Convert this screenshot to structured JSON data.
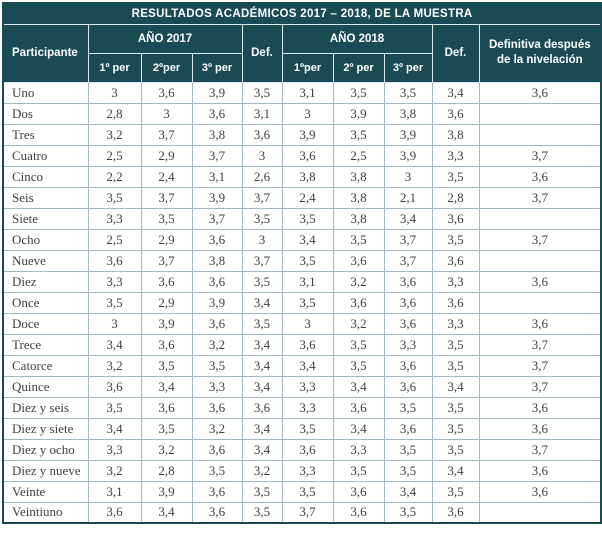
{
  "title": "RESULTADOS ACADÉMICOS 2017 – 2018, DE LA MUESTRA",
  "header": {
    "participante": "Participante",
    "ano_2017": "AÑO 2017",
    "ano_2018": "AÑO 2018",
    "def_2017": "Def.",
    "def_2018": "Def.",
    "definitiva": "Definitiva después de la nivelación",
    "periods_2017": [
      "1º per",
      "2ºper",
      "3º per"
    ],
    "periods_2018": [
      "1ºper",
      "2º per",
      "3º per"
    ]
  },
  "colors": {
    "header_bg": "#1a4a54",
    "header_text": "#ffffff",
    "body_border": "#a2b9c4",
    "header_border": "#dde7eb",
    "body_text": "#3f3f3f"
  },
  "rows": [
    {
      "name": "Uno",
      "values": [
        "3",
        "3,6",
        "3,9",
        "3,5",
        "3,1",
        "3,5",
        "3,5",
        "3,4",
        "3,6"
      ]
    },
    {
      "name": "Dos",
      "values": [
        "2,8",
        "3",
        "3,6",
        "3,1",
        "3",
        "3,9",
        "3,8",
        "3,6",
        ""
      ]
    },
    {
      "name": "Tres",
      "values": [
        "3,2",
        "3,7",
        "3,8",
        "3,6",
        "3,9",
        "3,5",
        "3,9",
        "3,8",
        ""
      ]
    },
    {
      "name": "Cuatro",
      "values": [
        "2,5",
        "2,9",
        "3,7",
        "3",
        "3,6",
        "2,5",
        "3,9",
        "3,3",
        "3,7"
      ]
    },
    {
      "name": "Cinco",
      "values": [
        "2,2",
        "2,4",
        "3,1",
        "2,6",
        "3,8",
        "3,8",
        "3",
        "3,5",
        "3,6"
      ]
    },
    {
      "name": "Seis",
      "values": [
        "3,5",
        "3,7",
        "3,9",
        "3,7",
        "2,4",
        "3,8",
        "2,1",
        "2,8",
        "3,7"
      ]
    },
    {
      "name": "Siete",
      "values": [
        "3,3",
        "3,5",
        "3,7",
        "3,5",
        "3,5",
        "3,8",
        "3,4",
        "3,6",
        ""
      ]
    },
    {
      "name": "Ocho",
      "values": [
        "2,5",
        "2,9",
        "3,6",
        "3",
        "3,4",
        "3,5",
        "3,7",
        "3,5",
        "3,7"
      ]
    },
    {
      "name": "Nueve",
      "values": [
        "3,6",
        "3,7",
        "3,8",
        "3,7",
        "3,5",
        "3,6",
        "3,7",
        "3,6",
        ""
      ]
    },
    {
      "name": "Diez",
      "values": [
        "3,3",
        "3,6",
        "3,6",
        "3,5",
        "3,1",
        "3,2",
        "3,6",
        "3,3",
        "3,6"
      ]
    },
    {
      "name": "Once",
      "values": [
        "3,5",
        "2,9",
        "3,9",
        "3,4",
        "3,5",
        "3,6",
        "3,6",
        "3,6",
        ""
      ]
    },
    {
      "name": "Doce",
      "values": [
        "3",
        "3,9",
        "3,6",
        "3,5",
        "3",
        "3,2",
        "3,6",
        "3,3",
        "3,6"
      ]
    },
    {
      "name": "Trece",
      "values": [
        "3,4",
        "3,6",
        "3,2",
        "3,4",
        "3,6",
        "3,5",
        "3,3",
        "3,5",
        "3,7"
      ]
    },
    {
      "name": "Catorce",
      "values": [
        "3,2",
        "3,5",
        "3,5",
        "3,4",
        "3,4",
        "3,5",
        "3,6",
        "3,5",
        "3,7"
      ]
    },
    {
      "name": "Quince",
      "values": [
        "3,6",
        "3,4",
        "3,3",
        "3,4",
        "3,3",
        "3,4",
        "3,6",
        "3,4",
        "3,7"
      ]
    },
    {
      "name": "Diez y seis",
      "values": [
        "3,5",
        "3,6",
        "3,6",
        "3,6",
        "3,3",
        "3,6",
        "3,5",
        "3,5",
        "3,6"
      ]
    },
    {
      "name": "Diez y siete",
      "values": [
        "3,4",
        "3,5",
        "3,2",
        "3,4",
        "3,5",
        "3,4",
        "3,6",
        "3,5",
        "3,6"
      ]
    },
    {
      "name": "Diez y ocho",
      "values": [
        "3,3",
        "3,2",
        "3,6",
        "3,4",
        "3,6",
        "3,3",
        "3,5",
        "3,5",
        "3,7"
      ]
    },
    {
      "name": "Diez y nueve",
      "values": [
        "3,2",
        "2,8",
        "3,5",
        "3,2",
        "3,3",
        "3,5",
        "3,5",
        "3,4",
        "3,6"
      ]
    },
    {
      "name": "Veinte",
      "values": [
        "3,1",
        "3,9",
        "3,6",
        "3,5",
        "3,5",
        "3,6",
        "3,4",
        "3,5",
        "3,6"
      ]
    },
    {
      "name": "Veintiuno",
      "values": [
        "3,6",
        "3,4",
        "3,6",
        "3,5",
        "3,7",
        "3,6",
        "3,5",
        "3,6",
        ""
      ]
    }
  ]
}
